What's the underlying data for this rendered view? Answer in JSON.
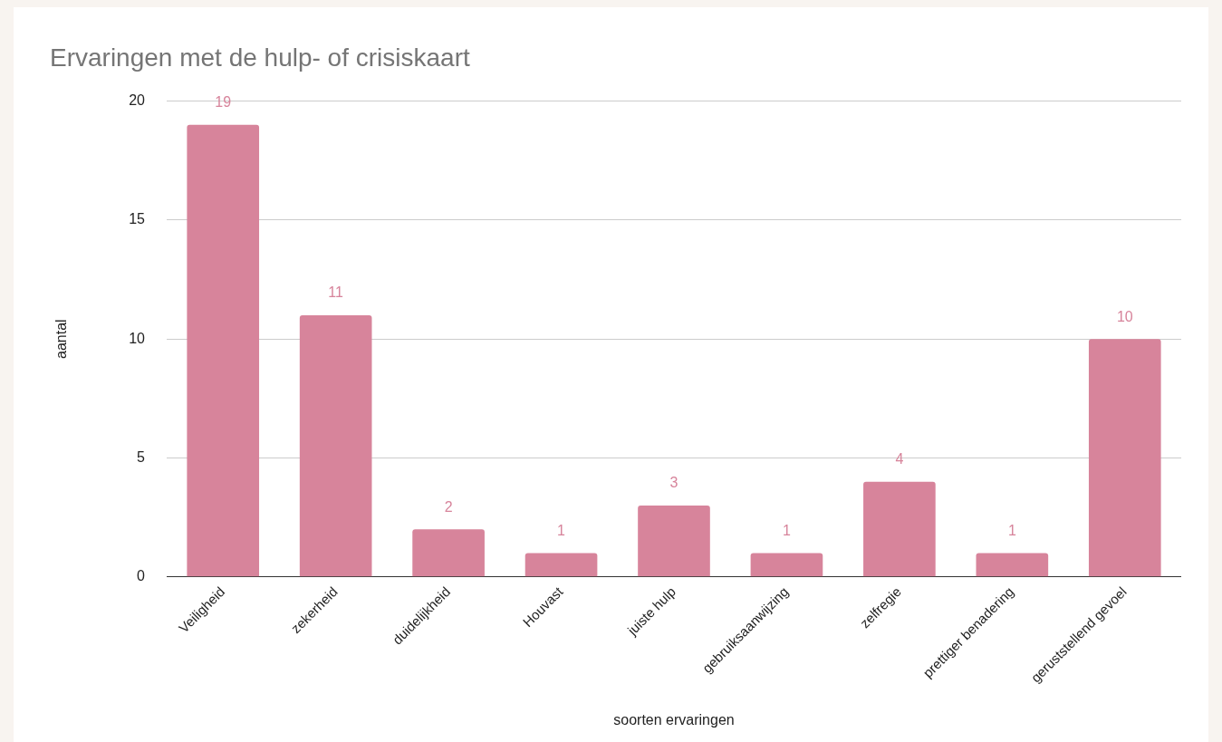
{
  "chart_data": {
    "type": "bar",
    "title": "Ervaringen met de hulp- of crisiskaart",
    "xlabel": "soorten ervaringen",
    "ylabel": "aantal",
    "categories": [
      "Veiligheid",
      "zekerheid",
      "duidelijkheid",
      "Houvast",
      "juiste hulp",
      "gebruiksaanwijzing",
      "zelfregie",
      "prettiger benadering",
      "geruststellend gevoel"
    ],
    "values": [
      19,
      11,
      2,
      1,
      3,
      1,
      4,
      1,
      10
    ],
    "color": "#d7849b",
    "ylim": [
      0,
      20
    ],
    "yticks": [
      0,
      5,
      10,
      15,
      20
    ],
    "grid": "y",
    "legend": false,
    "data_labels": true
  }
}
